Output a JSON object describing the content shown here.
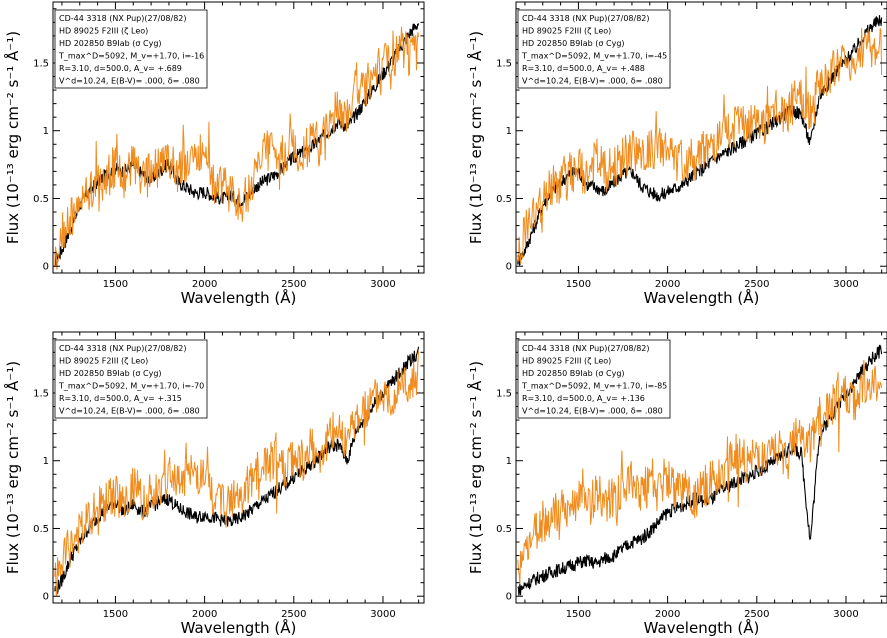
{
  "figure": {
    "xlabel": "Wavelength (Å)",
    "ylabel": "Flux (10⁻¹³ erg cm⁻² s⁻¹ Å⁻¹)",
    "colors": {
      "observed": "#000000",
      "model": "#f08c1e"
    }
  },
  "chart_data": [
    {
      "type": "line",
      "title": "",
      "xlabel": "Wavelength (Å)",
      "ylabel": "Flux (10⁻¹³ erg cm⁻² s⁻¹ Å⁻¹)",
      "xlim": [
        1150,
        3230
      ],
      "ylim": [
        -0.05,
        1.95
      ],
      "xticks": [
        1500,
        2000,
        2500,
        3000
      ],
      "yticks": [
        0,
        0.5,
        1,
        1.5
      ],
      "ytick_labels": [
        "0",
        "0.5",
        "1",
        "1.5"
      ],
      "grid": false,
      "series": [
        {
          "x": [
            1170,
            1200,
            1250,
            1300,
            1350,
            1400,
            1450,
            1500,
            1550,
            1600,
            1650,
            1700,
            1750,
            1800,
            1850,
            1900,
            1950,
            2000,
            2050,
            2100,
            2150,
            2200,
            2250,
            2300,
            2350,
            2400,
            2450,
            2500,
            2550,
            2600,
            2650,
            2700,
            2750,
            2800,
            2850,
            2900,
            2950,
            3000,
            3050,
            3100,
            3150,
            3200
          ],
          "y": [
            0.05,
            0.12,
            0.28,
            0.45,
            0.55,
            0.62,
            0.68,
            0.72,
            0.7,
            0.75,
            0.68,
            0.64,
            0.7,
            0.76,
            0.62,
            0.58,
            0.54,
            0.55,
            0.52,
            0.5,
            0.52,
            0.48,
            0.53,
            0.6,
            0.64,
            0.68,
            0.74,
            0.8,
            0.84,
            0.88,
            0.94,
            1.0,
            1.07,
            1.03,
            1.12,
            1.22,
            1.32,
            1.42,
            1.52,
            1.62,
            1.72,
            1.8
          ],
          "color": "#000000"
        },
        {
          "x": [
            1170,
            1200,
            1250,
            1300,
            1350,
            1400,
            1450,
            1500,
            1550,
            1600,
            1650,
            1700,
            1750,
            1800,
            1850,
            1900,
            1950,
            2000,
            2050,
            2100,
            2150,
            2200,
            2250,
            2300,
            2350,
            2400,
            2450,
            2500,
            2550,
            2600,
            2650,
            2700,
            2750,
            2800,
            2850,
            2900,
            2950,
            3000,
            3050,
            3100,
            3150,
            3200
          ],
          "y": [
            0.1,
            0.25,
            0.35,
            0.45,
            0.55,
            0.62,
            0.66,
            0.72,
            0.62,
            0.8,
            0.6,
            0.7,
            0.72,
            0.82,
            0.7,
            0.78,
            0.85,
            0.8,
            0.6,
            0.58,
            0.55,
            0.45,
            0.55,
            0.75,
            0.85,
            0.85,
            0.8,
            0.9,
            0.82,
            0.95,
            0.9,
            1.05,
            1.2,
            1.1,
            1.35,
            1.3,
            1.45,
            1.5,
            1.45,
            1.65,
            1.55,
            1.6
          ],
          "color": "#f08c1e"
        }
      ],
      "legend": {
        "position": "top-left",
        "lines": [
          "CD-44 3318 (NX Pup)(27/08/82)",
          "HD 89025 F2III (ζ Leo)",
          "HD 202850 B9Iab (σ Cyg)",
          "T_max^D=5092, M_v=+1.70, i=-16",
          "R=3.10, d=500.0, A_v= +.689",
          "V^d=10.24, E(B-V)= .000, δ= .080"
        ]
      }
    },
    {
      "type": "line",
      "title": "",
      "xlabel": "Wavelength (Å)",
      "ylabel": "Flux (10⁻¹³ erg cm⁻² s⁻¹ Å⁻¹)",
      "xlim": [
        1150,
        3230
      ],
      "ylim": [
        -0.05,
        1.95
      ],
      "xticks": [
        1500,
        2000,
        2500,
        3000
      ],
      "yticks": [
        0,
        0.5,
        1,
        1.5
      ],
      "ytick_labels": [
        "0",
        "0.5",
        "1",
        "1.5"
      ],
      "grid": false,
      "series": [
        {
          "x": [
            1170,
            1200,
            1250,
            1300,
            1350,
            1400,
            1450,
            1500,
            1550,
            1600,
            1650,
            1700,
            1750,
            1800,
            1850,
            1900,
            1950,
            2000,
            2050,
            2100,
            2150,
            2200,
            2250,
            2300,
            2350,
            2400,
            2450,
            2500,
            2550,
            2600,
            2650,
            2700,
            2750,
            2800,
            2850,
            2900,
            2950,
            3000,
            3050,
            3100,
            3150,
            3200
          ],
          "y": [
            0.05,
            0.12,
            0.28,
            0.45,
            0.55,
            0.62,
            0.68,
            0.7,
            0.6,
            0.58,
            0.55,
            0.62,
            0.68,
            0.7,
            0.6,
            0.55,
            0.52,
            0.55,
            0.58,
            0.62,
            0.68,
            0.72,
            0.78,
            0.82,
            0.86,
            0.9,
            0.94,
            0.98,
            1.02,
            1.06,
            1.12,
            1.15,
            1.12,
            0.9,
            1.25,
            1.35,
            1.45,
            1.52,
            1.6,
            1.7,
            1.78,
            1.82
          ],
          "color": "#000000"
        },
        {
          "x": [
            1170,
            1200,
            1250,
            1300,
            1350,
            1400,
            1450,
            1500,
            1550,
            1600,
            1650,
            1700,
            1750,
            1800,
            1850,
            1900,
            1950,
            2000,
            2050,
            2100,
            2150,
            2200,
            2250,
            2300,
            2350,
            2400,
            2450,
            2500,
            2550,
            2600,
            2650,
            2700,
            2750,
            2800,
            2850,
            2900,
            2950,
            3000,
            3050,
            3100,
            3150,
            3200
          ],
          "y": [
            0.1,
            0.25,
            0.38,
            0.48,
            0.58,
            0.62,
            0.68,
            0.72,
            0.66,
            0.8,
            0.7,
            0.72,
            0.8,
            0.85,
            0.78,
            0.85,
            0.9,
            0.85,
            0.75,
            0.8,
            0.78,
            0.85,
            0.9,
            0.95,
            1.0,
            1.05,
            1.0,
            1.1,
            1.05,
            1.15,
            1.1,
            1.2,
            1.25,
            1.15,
            1.35,
            1.4,
            1.5,
            1.55,
            1.5,
            1.65,
            1.6,
            1.65
          ],
          "color": "#f08c1e"
        }
      ],
      "legend": {
        "position": "top-left",
        "lines": [
          "CD-44 3318 (NX Pup)(27/08/82)",
          "HD 89025 F2III (ζ Leo)",
          "HD 202850 B9Iab (σ Cyg)",
          "T_max^D=5092, M_v=+1.70, i=-45",
          "R=3.10, d=500.0, A_v= +.488",
          "V^d=10.24, E(B-V)= .000, δ= .080"
        ]
      }
    },
    {
      "type": "line",
      "title": "",
      "xlabel": "Wavelength (Å)",
      "ylabel": "Flux (10⁻¹³ erg cm⁻² s⁻¹ Å⁻¹)",
      "xlim": [
        1150,
        3230
      ],
      "ylim": [
        -0.05,
        1.95
      ],
      "xticks": [
        1500,
        2000,
        2500,
        3000
      ],
      "yticks": [
        0,
        0.5,
        1,
        1.5
      ],
      "ytick_labels": [
        "0",
        "0.5",
        "1",
        "1.5"
      ],
      "grid": false,
      "series": [
        {
          "x": [
            1170,
            1200,
            1250,
            1300,
            1350,
            1400,
            1450,
            1500,
            1550,
            1600,
            1650,
            1700,
            1750,
            1800,
            1850,
            1900,
            1950,
            2000,
            2050,
            2100,
            2150,
            2200,
            2250,
            2300,
            2350,
            2400,
            2450,
            2500,
            2550,
            2600,
            2650,
            2700,
            2750,
            2800,
            2850,
            2900,
            2950,
            3000,
            3050,
            3100,
            3150,
            3200
          ],
          "y": [
            0.05,
            0.12,
            0.28,
            0.4,
            0.5,
            0.58,
            0.65,
            0.7,
            0.62,
            0.68,
            0.62,
            0.66,
            0.7,
            0.72,
            0.65,
            0.62,
            0.58,
            0.6,
            0.58,
            0.56,
            0.55,
            0.58,
            0.62,
            0.68,
            0.72,
            0.78,
            0.82,
            0.88,
            0.92,
            0.98,
            1.04,
            1.1,
            1.12,
            1.0,
            1.22,
            1.32,
            1.42,
            1.5,
            1.58,
            1.66,
            1.74,
            1.8
          ],
          "color": "#000000"
        },
        {
          "x": [
            1170,
            1200,
            1250,
            1300,
            1350,
            1400,
            1450,
            1500,
            1550,
            1600,
            1650,
            1700,
            1750,
            1800,
            1850,
            1900,
            1950,
            2000,
            2050,
            2100,
            2150,
            2200,
            2250,
            2300,
            2350,
            2400,
            2450,
            2500,
            2550,
            2600,
            2650,
            2700,
            2750,
            2800,
            2850,
            2900,
            2950,
            3000,
            3050,
            3100,
            3150,
            3200
          ],
          "y": [
            0.1,
            0.25,
            0.38,
            0.48,
            0.58,
            0.64,
            0.7,
            0.75,
            0.65,
            0.82,
            0.72,
            0.75,
            0.82,
            0.88,
            0.8,
            0.88,
            0.92,
            0.88,
            0.72,
            0.75,
            0.7,
            0.75,
            0.82,
            0.92,
            0.98,
            1.0,
            0.95,
            1.05,
            1.0,
            1.1,
            1.05,
            1.18,
            1.25,
            1.15,
            1.35,
            1.38,
            1.48,
            1.52,
            1.48,
            1.62,
            1.55,
            1.62
          ],
          "color": "#f08c1e"
        }
      ],
      "legend": {
        "position": "top-left",
        "lines": [
          "CD-44 3318 (NX Pup)(27/08/82)",
          "HD 89025 F2III (ζ Leo)",
          "HD 202850 B9Iab (σ Cyg)",
          "T_max^D=5092, M_v=+1.70, i=-70",
          "R=3.10, d=500.0, A_v= +.315",
          "V^d=10.24, E(B-V)= .000, δ= .080"
        ]
      }
    },
    {
      "type": "line",
      "title": "",
      "xlabel": "Wavelength (Å)",
      "ylabel": "Flux (10⁻¹³ erg cm⁻² s⁻¹ Å⁻¹)",
      "xlim": [
        1150,
        3230
      ],
      "ylim": [
        -0.05,
        1.95
      ],
      "xticks": [
        1500,
        2000,
        2500,
        3000
      ],
      "yticks": [
        0,
        0.5,
        1,
        1.5
      ],
      "ytick_labels": [
        "0",
        "0.5",
        "1",
        "1.5"
      ],
      "grid": false,
      "series": [
        {
          "x": [
            1170,
            1200,
            1250,
            1300,
            1350,
            1400,
            1450,
            1500,
            1550,
            1600,
            1650,
            1700,
            1750,
            1800,
            1850,
            1900,
            1950,
            2000,
            2050,
            2100,
            2150,
            2200,
            2250,
            2300,
            2350,
            2400,
            2450,
            2500,
            2550,
            2600,
            2650,
            2700,
            2750,
            2800,
            2850,
            2900,
            2950,
            3000,
            3050,
            3100,
            3150,
            3200
          ],
          "y": [
            0.05,
            0.08,
            0.12,
            0.15,
            0.18,
            0.2,
            0.22,
            0.25,
            0.26,
            0.24,
            0.28,
            0.3,
            0.35,
            0.4,
            0.42,
            0.48,
            0.55,
            0.62,
            0.65,
            0.68,
            0.72,
            0.7,
            0.72,
            0.78,
            0.82,
            0.86,
            0.88,
            0.92,
            0.95,
            1.0,
            1.05,
            1.1,
            1.05,
            0.4,
            1.18,
            1.3,
            1.4,
            1.5,
            1.58,
            1.68,
            1.76,
            1.82
          ],
          "color": "#000000"
        },
        {
          "x": [
            1170,
            1200,
            1250,
            1300,
            1350,
            1400,
            1450,
            1500,
            1550,
            1600,
            1650,
            1700,
            1750,
            1800,
            1850,
            1900,
            1950,
            2000,
            2050,
            2100,
            2150,
            2200,
            2250,
            2300,
            2350,
            2400,
            2450,
            2500,
            2550,
            2600,
            2650,
            2700,
            2750,
            2800,
            2850,
            2900,
            2950,
            3000,
            3050,
            3100,
            3150,
            3200
          ],
          "y": [
            0.15,
            0.35,
            0.48,
            0.55,
            0.6,
            0.62,
            0.68,
            0.7,
            0.62,
            0.78,
            0.7,
            0.72,
            0.78,
            0.85,
            0.78,
            0.85,
            0.9,
            0.88,
            0.75,
            0.8,
            0.7,
            0.8,
            0.85,
            0.92,
            0.98,
            1.02,
            0.95,
            1.08,
            1.0,
            1.1,
            1.05,
            1.15,
            1.22,
            1.12,
            1.32,
            1.38,
            1.45,
            1.52,
            1.45,
            1.6,
            1.52,
            1.6
          ],
          "color": "#f08c1e"
        }
      ],
      "legend": {
        "position": "top-left",
        "lines": [
          "CD-44 3318 (NX Pup)(27/08/82)",
          "HD 89025 F2III (ζ Leo)",
          "HD 202850 B9Iab (σ Cyg)",
          "T_max^D=5092, M_v=+1.70, i=-85",
          "R=3.10, d=500.0, A_v= +.136",
          "V^d=10.24, E(B-V)= .000, δ= .080"
        ]
      }
    }
  ]
}
